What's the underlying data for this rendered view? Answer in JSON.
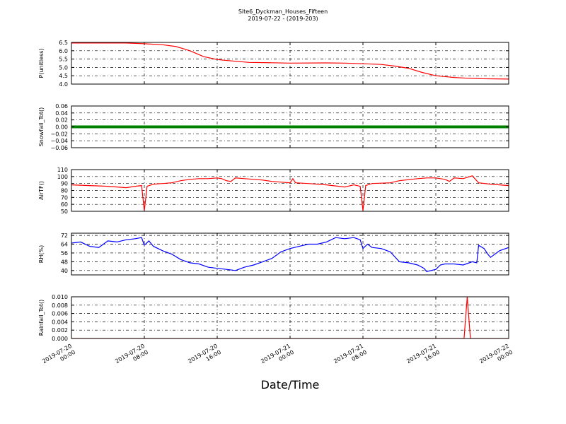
{
  "figure": {
    "title": "Site6_Dyckman_Houses_Fifteen",
    "subtitle": "2019-07-22 - (2019-203)",
    "xlabel": "Date/Time",
    "x_ticks": [
      {
        "line1": "2019-07-20",
        "line2": "00:00",
        "t": 0
      },
      {
        "line1": "2019-07-20",
        "line2": "08:00",
        "t": 8
      },
      {
        "line1": "2019-07-20",
        "line2": "16:00",
        "t": 16
      },
      {
        "line1": "2019-07-21",
        "line2": "00:00",
        "t": 24
      },
      {
        "line1": "2019-07-21",
        "line2": "08:00",
        "t": 32
      },
      {
        "line1": "2019-07-21",
        "line2": "16:00",
        "t": 40
      },
      {
        "line1": "2019-07-22",
        "line2": "00:00",
        "t": 48
      }
    ],
    "xlim": [
      0,
      48
    ]
  },
  "chart_data": [
    {
      "type": "line",
      "ylabel": "P(unitless)",
      "ylim": [
        4.0,
        6.5
      ],
      "yticks": [
        "4.0",
        "4.5",
        "5.0",
        "5.5",
        "6.0",
        "6.5"
      ],
      "yvals": [
        4.0,
        4.5,
        5.0,
        5.5,
        6.0,
        6.5
      ],
      "color": "#ff0000",
      "grid": true,
      "points": [
        [
          0,
          6.46
        ],
        [
          6,
          6.46
        ],
        [
          8,
          6.42
        ],
        [
          10,
          6.36
        ],
        [
          11.5,
          6.25
        ],
        [
          13,
          6.0
        ],
        [
          14.5,
          5.65
        ],
        [
          16,
          5.47
        ],
        [
          18,
          5.37
        ],
        [
          19.5,
          5.3
        ],
        [
          22,
          5.28
        ],
        [
          24,
          5.26
        ],
        [
          28,
          5.27
        ],
        [
          30,
          5.26
        ],
        [
          32,
          5.22
        ],
        [
          34,
          5.18
        ],
        [
          35.5,
          5.08
        ],
        [
          37,
          4.95
        ],
        [
          38.5,
          4.7
        ],
        [
          40,
          4.5
        ],
        [
          42,
          4.4
        ],
        [
          43.5,
          4.35
        ],
        [
          45,
          4.32
        ],
        [
          48,
          4.3
        ]
      ]
    },
    {
      "type": "line",
      "ylabel": "Snowfall_Tot()",
      "ylim": [
        -0.06,
        0.06
      ],
      "yticks": [
        "0.06",
        "0.04",
        "0.02",
        "0.00",
        "−0.02",
        "−0.04",
        "−0.06"
      ],
      "yvals": [
        0.06,
        0.04,
        0.02,
        0.0,
        -0.02,
        -0.04,
        -0.06
      ],
      "color": "#008000",
      "grid": true,
      "points": [
        [
          0,
          0
        ],
        [
          48,
          0
        ]
      ]
    },
    {
      "type": "line",
      "ylabel": "AirTF()",
      "ylim": [
        50,
        110
      ],
      "yticks": [
        "110",
        "100",
        "90",
        "80",
        "70",
        "60",
        "50"
      ],
      "yvals": [
        110,
        100,
        90,
        80,
        70,
        60,
        50
      ],
      "color": "#ff0000",
      "grid": true,
      "points": [
        [
          0,
          88
        ],
        [
          2,
          87
        ],
        [
          4,
          86
        ],
        [
          6,
          84
        ],
        [
          7,
          86
        ],
        [
          7.7,
          87
        ],
        [
          8,
          51
        ],
        [
          8.3,
          86
        ],
        [
          9,
          89
        ],
        [
          10,
          90
        ],
        [
          11,
          91
        ],
        [
          12,
          94
        ],
        [
          13,
          96
        ],
        [
          14,
          97
        ],
        [
          15,
          97
        ],
        [
          16,
          98
        ],
        [
          16.5,
          97
        ],
        [
          17,
          94
        ],
        [
          17.5,
          93
        ],
        [
          18,
          98
        ],
        [
          19,
          97
        ],
        [
          20,
          96
        ],
        [
          21,
          95
        ],
        [
          22,
          93
        ],
        [
          23,
          92
        ],
        [
          24,
          91
        ],
        [
          24.3,
          97
        ],
        [
          24.6,
          91
        ],
        [
          26,
          90
        ],
        [
          28,
          88
        ],
        [
          30,
          85
        ],
        [
          31,
          88
        ],
        [
          31.7,
          86
        ],
        [
          32,
          51
        ],
        [
          32.3,
          87
        ],
        [
          33,
          90
        ],
        [
          35,
          91
        ],
        [
          36,
          94
        ],
        [
          38,
          97
        ],
        [
          39,
          98
        ],
        [
          40,
          98
        ],
        [
          41,
          96
        ],
        [
          41.5,
          93
        ],
        [
          42,
          98
        ],
        [
          43,
          97
        ],
        [
          44,
          101
        ],
        [
          44.7,
          91
        ],
        [
          46,
          89
        ],
        [
          48,
          87
        ]
      ]
    },
    {
      "type": "line",
      "ylabel": "RH(%)",
      "ylim": [
        36,
        74
      ],
      "yticks": [
        "72",
        "64",
        "56",
        "48",
        "40"
      ],
      "yvals": [
        72,
        64,
        56,
        48,
        40
      ],
      "color": "#0000ff",
      "grid": true,
      "points": [
        [
          0,
          65
        ],
        [
          1,
          66
        ],
        [
          2,
          62
        ],
        [
          3,
          61
        ],
        [
          4,
          67
        ],
        [
          5,
          66
        ],
        [
          6,
          68
        ],
        [
          7,
          69
        ],
        [
          7.7,
          70
        ],
        [
          8,
          63
        ],
        [
          8.5,
          67
        ],
        [
          9,
          62
        ],
        [
          10,
          58
        ],
        [
          11,
          55
        ],
        [
          12,
          50
        ],
        [
          13,
          47
        ],
        [
          14,
          46
        ],
        [
          15,
          43
        ],
        [
          16,
          42
        ],
        [
          17,
          41
        ],
        [
          18,
          40
        ],
        [
          19,
          43
        ],
        [
          20,
          45
        ],
        [
          21,
          48
        ],
        [
          22,
          51
        ],
        [
          23,
          57
        ],
        [
          24,
          60
        ],
        [
          25,
          62
        ],
        [
          26,
          64
        ],
        [
          27,
          64
        ],
        [
          28,
          66
        ],
        [
          29,
          70
        ],
        [
          30,
          69
        ],
        [
          31,
          70
        ],
        [
          31.7,
          68
        ],
        [
          32,
          60
        ],
        [
          32.5,
          64
        ],
        [
          33,
          61
        ],
        [
          34,
          60
        ],
        [
          35,
          57
        ],
        [
          36,
          48
        ],
        [
          37,
          47
        ],
        [
          38,
          45
        ],
        [
          38.7,
          42
        ],
        [
          39,
          39
        ],
        [
          40,
          41
        ],
        [
          40.5,
          45
        ],
        [
          41,
          46
        ],
        [
          42,
          46
        ],
        [
          43,
          45
        ],
        [
          44,
          48
        ],
        [
          44.5,
          47
        ],
        [
          44.7,
          63
        ],
        [
          45.3,
          60
        ],
        [
          45.7,
          55
        ],
        [
          46,
          52
        ],
        [
          47,
          58
        ],
        [
          48,
          61
        ]
      ]
    },
    {
      "type": "line",
      "ylabel": "Rainfall_Tot()",
      "ylim": [
        0,
        0.01
      ],
      "yticks": [
        "0.010",
        "0.008",
        "0.006",
        "0.004",
        "0.002",
        "0.000"
      ],
      "yvals": [
        0.01,
        0.008,
        0.006,
        0.004,
        0.002,
        0.0
      ],
      "color": "#ff0000",
      "grid": true,
      "points": [
        [
          0,
          0
        ],
        [
          43.1,
          0
        ],
        [
          43.45,
          0.01
        ],
        [
          43.8,
          0
        ],
        [
          48,
          0
        ]
      ]
    }
  ]
}
